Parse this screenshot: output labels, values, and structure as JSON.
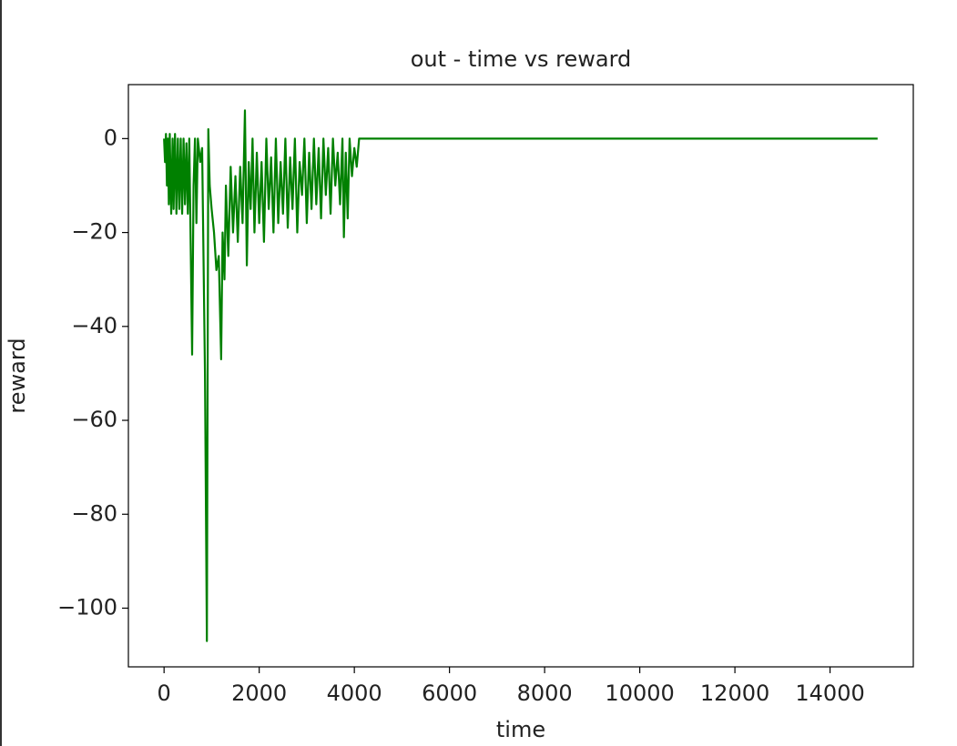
{
  "chart_data": {
    "type": "line",
    "title": "out - time vs reward",
    "xlabel": "time",
    "ylabel": "reward",
    "x": [
      0,
      20,
      40,
      60,
      80,
      100,
      120,
      150,
      180,
      200,
      230,
      260,
      290,
      320,
      350,
      380,
      410,
      440,
      470,
      500,
      530,
      590,
      620,
      650,
      680,
      710,
      760,
      800,
      860,
      900,
      930,
      960,
      1000,
      1050,
      1100,
      1150,
      1200,
      1230,
      1270,
      1300,
      1350,
      1400,
      1450,
      1500,
      1550,
      1600,
      1650,
      1700,
      1740,
      1780,
      1820,
      1860,
      1900,
      1950,
      2000,
      2050,
      2100,
      2150,
      2200,
      2250,
      2300,
      2350,
      2400,
      2450,
      2500,
      2550,
      2600,
      2650,
      2700,
      2750,
      2800,
      2850,
      2900,
      2950,
      3000,
      3050,
      3100,
      3150,
      3200,
      3250,
      3300,
      3350,
      3400,
      3450,
      3500,
      3550,
      3600,
      3650,
      3700,
      3750,
      3780,
      3820,
      3860,
      3900,
      3950,
      4000,
      4050,
      4100,
      15000
    ],
    "series": [
      {
        "color": "#008000",
        "values": [
          0,
          -5,
          1,
          -10,
          0,
          -14,
          1,
          -16,
          0,
          -15,
          1,
          -16,
          0,
          -15,
          0,
          -16,
          0,
          -14,
          -1,
          -16,
          0,
          -46,
          -10,
          0,
          -18,
          0,
          -5,
          -2,
          -50,
          -107,
          2,
          -10,
          -15,
          -20,
          -28,
          -25,
          -47,
          -20,
          -30,
          -10,
          -25,
          -6,
          -20,
          -8,
          -22,
          -6,
          -18,
          6,
          -27,
          -5,
          -15,
          0,
          -20,
          -3,
          -18,
          -5,
          -22,
          0,
          -15,
          -4,
          -20,
          0,
          -18,
          -5,
          -16,
          0,
          -19,
          -4,
          -15,
          0,
          -20,
          -5,
          -12,
          0,
          -18,
          -3,
          -15,
          0,
          -14,
          -2,
          -17,
          0,
          -12,
          -2,
          -16,
          0,
          -10,
          -3,
          -14,
          0,
          -21,
          -3,
          -17,
          0,
          -8,
          -2,
          -6,
          0,
          0
        ]
      }
    ],
    "xlim": [
      -750,
      15750
    ],
    "ylim": [
      -112.5,
      11.5
    ],
    "xticks": [
      0,
      2000,
      4000,
      6000,
      8000,
      10000,
      12000,
      14000
    ],
    "yticks": [
      {
        "value": -100,
        "label": "−100"
      },
      {
        "value": -80,
        "label": "−80"
      },
      {
        "value": -60,
        "label": "−60"
      },
      {
        "value": -40,
        "label": "−40"
      },
      {
        "value": -20,
        "label": "−20"
      },
      0
    ]
  }
}
